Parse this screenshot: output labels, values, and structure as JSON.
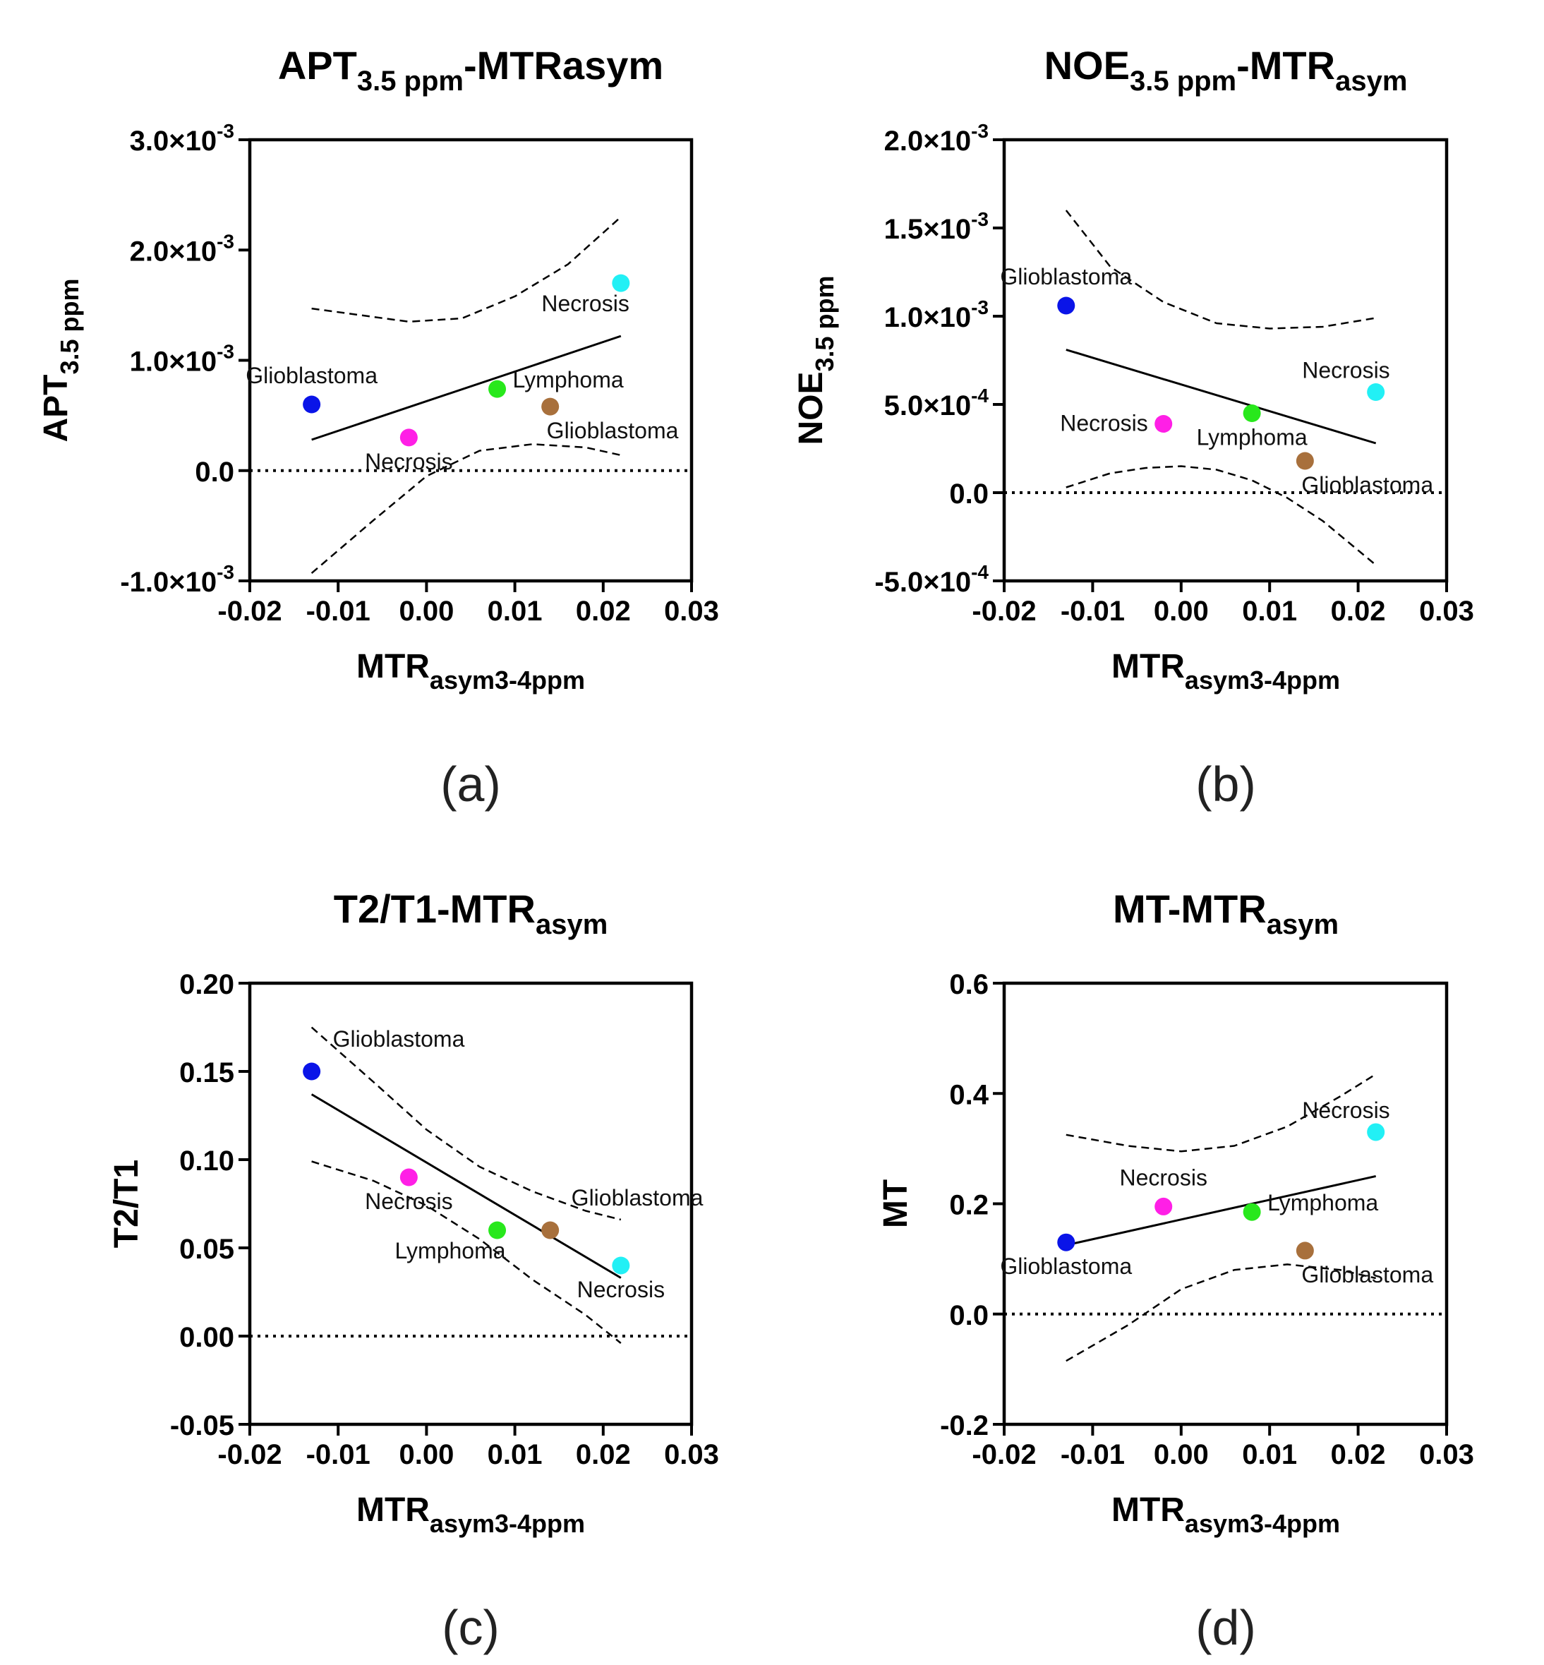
{
  "chart_data": [
    {
      "type": "scatter",
      "panel_label": "(a)",
      "title": {
        "main": "APT",
        "sub": "3.5 ppm",
        "rest": "-MTRasym"
      },
      "xlabel": {
        "main": "MTR",
        "sub": "asym3-4ppm"
      },
      "ylabel": {
        "main": "APT",
        "sub": "3.5 ppm"
      },
      "xlim": [
        -0.02,
        0.03
      ],
      "ylim": [
        -0.001,
        0.003
      ],
      "x_ticks": [
        -0.02,
        -0.01,
        0.0,
        0.01,
        0.02,
        0.03
      ],
      "x_tick_labels": [
        "-0.02",
        "-0.01",
        "0.00",
        "0.01",
        "0.02",
        "0.03"
      ],
      "y_ticks": [
        -0.001,
        0.0,
        0.001,
        0.002,
        0.003
      ],
      "y_tick_labels": [
        {
          "base": "-1.0×10",
          "exp": "-3"
        },
        {
          "base": "0.0",
          "exp": ""
        },
        {
          "base": "1.0×10",
          "exp": "-3"
        },
        {
          "base": "2.0×10",
          "exp": "-3"
        },
        {
          "base": "3.0×10",
          "exp": "-3"
        }
      ],
      "points": [
        {
          "label": "Glioblastoma",
          "x": -0.013,
          "y": 0.0006,
          "color": "#0a14e8",
          "label_pos": "above"
        },
        {
          "label": "Necrosis",
          "x": -0.002,
          "y": 0.0003,
          "color": "#ff1fe6",
          "label_pos": "below"
        },
        {
          "label": "Lymphoma",
          "x": 0.008,
          "y": 0.00074,
          "color": "#28e81c",
          "label_pos": "right"
        },
        {
          "label": "Glioblastoma",
          "x": 0.014,
          "y": 0.00058,
          "color": "#a8703c",
          "label_pos": "below-right"
        },
        {
          "label": "Necrosis",
          "x": 0.022,
          "y": 0.0017,
          "color": "#22f0f5",
          "label_pos": "below-left"
        }
      ],
      "fit_line": {
        "x": [
          -0.013,
          0.022
        ],
        "y": [
          0.00028,
          0.00122
        ]
      },
      "ci_upper": {
        "x": [
          -0.013,
          -0.002,
          0.004,
          0.01,
          0.016,
          0.022
        ],
        "y": [
          0.00147,
          0.00135,
          0.00138,
          0.00158,
          0.00187,
          0.0023
        ]
      },
      "ci_lower": {
        "x": [
          -0.013,
          -0.006,
          0.0,
          0.006,
          0.012,
          0.018,
          0.022
        ],
        "y": [
          -0.00093,
          -0.00045,
          -5e-05,
          0.00018,
          0.00024,
          0.00021,
          0.00014
        ]
      },
      "zero_line": 0.0
    },
    {
      "type": "scatter",
      "panel_label": "(b)",
      "title": {
        "main": "NOE",
        "sub": "3.5 ppm",
        "rest": "-MTR",
        "rest_sub": "asym"
      },
      "xlabel": {
        "main": "MTR",
        "sub": "asym3-4ppm"
      },
      "ylabel": {
        "main": "NOE",
        "sub": "3.5 ppm"
      },
      "xlim": [
        -0.02,
        0.03
      ],
      "ylim": [
        -0.0005,
        0.002
      ],
      "x_ticks": [
        -0.02,
        -0.01,
        0.0,
        0.01,
        0.02,
        0.03
      ],
      "x_tick_labels": [
        "-0.02",
        "-0.01",
        "0.00",
        "0.01",
        "0.02",
        "0.03"
      ],
      "y_ticks": [
        -0.0005,
        0.0,
        0.0005,
        0.001,
        0.0015,
        0.002
      ],
      "y_tick_labels": [
        {
          "base": "-5.0×10",
          "exp": "-4"
        },
        {
          "base": "0.0",
          "exp": ""
        },
        {
          "base": "5.0×10",
          "exp": "-4"
        },
        {
          "base": "1.0×10",
          "exp": "-3"
        },
        {
          "base": "1.5×10",
          "exp": "-3"
        },
        {
          "base": "2.0×10",
          "exp": "-3"
        }
      ],
      "points": [
        {
          "label": "Glioblastoma",
          "x": -0.013,
          "y": 0.00106,
          "color": "#0a14e8",
          "label_pos": "above"
        },
        {
          "label": "Necrosis",
          "x": -0.002,
          "y": 0.00039,
          "color": "#ff1fe6",
          "label_pos": "left"
        },
        {
          "label": "Lymphoma",
          "x": 0.008,
          "y": 0.00045,
          "color": "#28e81c",
          "label_pos": "below"
        },
        {
          "label": "Glioblastoma",
          "x": 0.014,
          "y": 0.00018,
          "color": "#a8703c",
          "label_pos": "below-right"
        },
        {
          "label": "Necrosis",
          "x": 0.022,
          "y": 0.00057,
          "color": "#22f0f5",
          "label_pos": "above-left"
        }
      ],
      "fit_line": {
        "x": [
          -0.013,
          0.022
        ],
        "y": [
          0.00081,
          0.00028
        ]
      },
      "ci_upper": {
        "x": [
          -0.013,
          -0.008,
          -0.002,
          0.004,
          0.01,
          0.016,
          0.022
        ],
        "y": [
          0.0016,
          0.00128,
          0.00108,
          0.00096,
          0.00093,
          0.00094,
          0.00099
        ]
      },
      "ci_lower": {
        "x": [
          -0.013,
          -0.008,
          -0.004,
          0.0,
          0.004,
          0.008,
          0.012,
          0.016,
          0.022
        ],
        "y": [
          3e-05,
          0.00011,
          0.00014,
          0.00015,
          0.00013,
          7e-05,
          -3e-05,
          -0.00016,
          -0.00041
        ]
      },
      "zero_line": 0.0
    },
    {
      "type": "scatter",
      "panel_label": "(c)",
      "title": {
        "main": "T2/T1-MTR",
        "sub": "asym",
        "rest": ""
      },
      "xlabel": {
        "main": "MTR",
        "sub": "asym3-4ppm"
      },
      "ylabel": {
        "main": "T2/T1",
        "sub": ""
      },
      "xlim": [
        -0.02,
        0.03
      ],
      "ylim": [
        -0.05,
        0.2
      ],
      "x_ticks": [
        -0.02,
        -0.01,
        0.0,
        0.01,
        0.02,
        0.03
      ],
      "x_tick_labels": [
        "-0.02",
        "-0.01",
        "0.00",
        "0.01",
        "0.02",
        "0.03"
      ],
      "y_ticks": [
        -0.05,
        0.0,
        0.05,
        0.1,
        0.15,
        0.2
      ],
      "y_tick_labels": [
        {
          "base": "-0.05",
          "exp": ""
        },
        {
          "base": "0.00",
          "exp": ""
        },
        {
          "base": "0.05",
          "exp": ""
        },
        {
          "base": "0.10",
          "exp": ""
        },
        {
          "base": "0.15",
          "exp": ""
        },
        {
          "base": "0.20",
          "exp": ""
        }
      ],
      "points": [
        {
          "label": "Glioblastoma",
          "x": -0.013,
          "y": 0.15,
          "color": "#0a14e8",
          "label_pos": "above-right"
        },
        {
          "label": "Necrosis",
          "x": -0.002,
          "y": 0.09,
          "color": "#ff1fe6",
          "label_pos": "below"
        },
        {
          "label": "Lymphoma",
          "x": 0.008,
          "y": 0.06,
          "color": "#28e81c",
          "label_pos": "below-left"
        },
        {
          "label": "Glioblastoma",
          "x": 0.014,
          "y": 0.06,
          "color": "#a8703c",
          "label_pos": "above-right"
        },
        {
          "label": "Necrosis",
          "x": 0.022,
          "y": 0.04,
          "color": "#22f0f5",
          "label_pos": "below"
        }
      ],
      "fit_line": {
        "x": [
          -0.013,
          0.022
        ],
        "y": [
          0.137,
          0.033
        ]
      },
      "ci_upper": {
        "x": [
          -0.013,
          -0.006,
          0.0,
          0.006,
          0.012,
          0.018,
          0.022
        ],
        "y": [
          0.175,
          0.144,
          0.117,
          0.096,
          0.082,
          0.071,
          0.066
        ]
      },
      "ci_lower": {
        "x": [
          -0.013,
          -0.006,
          0.0,
          0.006,
          0.012,
          0.018,
          0.022
        ],
        "y": [
          0.099,
          0.088,
          0.074,
          0.055,
          0.032,
          0.012,
          -0.004
        ]
      },
      "zero_line": 0.0
    },
    {
      "type": "scatter",
      "panel_label": "(d)",
      "title": {
        "main": "MT-MTR",
        "sub": "asym",
        "rest": ""
      },
      "xlabel": {
        "main": "MTR",
        "sub": "asym3-4ppm"
      },
      "ylabel": {
        "main": "MT",
        "sub": ""
      },
      "xlim": [
        -0.02,
        0.03
      ],
      "ylim": [
        -0.2,
        0.6
      ],
      "x_ticks": [
        -0.02,
        -0.01,
        0.0,
        0.01,
        0.02,
        0.03
      ],
      "x_tick_labels": [
        "-0.02",
        "-0.01",
        "0.00",
        "0.01",
        "0.02",
        "0.03"
      ],
      "y_ticks": [
        -0.2,
        0.0,
        0.2,
        0.4,
        0.6
      ],
      "y_tick_labels": [
        {
          "base": "-0.2",
          "exp": ""
        },
        {
          "base": "0.0",
          "exp": ""
        },
        {
          "base": "0.2",
          "exp": ""
        },
        {
          "base": "0.4",
          "exp": ""
        },
        {
          "base": "0.6",
          "exp": ""
        }
      ],
      "points": [
        {
          "label": "Glioblastoma",
          "x": -0.013,
          "y": 0.13,
          "color": "#0a14e8",
          "label_pos": "below"
        },
        {
          "label": "Necrosis",
          "x": -0.002,
          "y": 0.195,
          "color": "#ff1fe6",
          "label_pos": "above"
        },
        {
          "label": "Lymphoma",
          "x": 0.008,
          "y": 0.185,
          "color": "#28e81c",
          "label_pos": "right"
        },
        {
          "label": "Glioblastoma",
          "x": 0.014,
          "y": 0.115,
          "color": "#a8703c",
          "label_pos": "below-right"
        },
        {
          "label": "Necrosis",
          "x": 0.022,
          "y": 0.33,
          "color": "#22f0f5",
          "label_pos": "above-left"
        }
      ],
      "fit_line": {
        "x": [
          -0.013,
          0.022
        ],
        "y": [
          0.125,
          0.25
        ]
      },
      "ci_upper": {
        "x": [
          -0.013,
          -0.006,
          0.0,
          0.006,
          0.012,
          0.018,
          0.022
        ],
        "y": [
          0.325,
          0.305,
          0.295,
          0.305,
          0.34,
          0.395,
          0.435
        ]
      },
      "ci_lower": {
        "x": [
          -0.013,
          -0.006,
          0.0,
          0.006,
          0.012,
          0.018,
          0.022
        ],
        "y": [
          -0.085,
          -0.02,
          0.045,
          0.08,
          0.09,
          0.08,
          0.065
        ]
      },
      "zero_line": 0.0
    }
  ]
}
